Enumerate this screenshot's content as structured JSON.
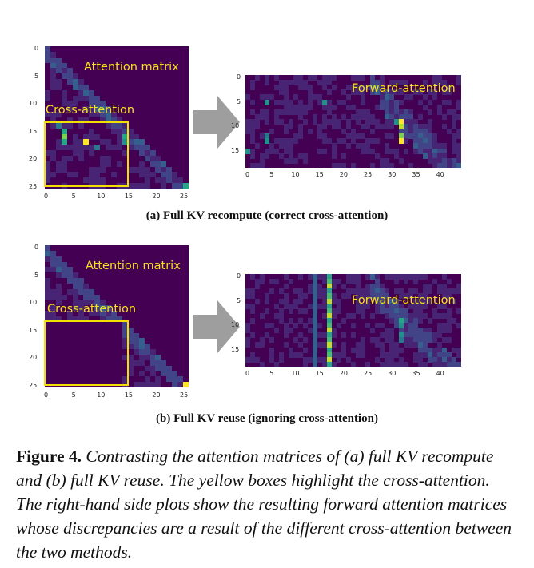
{
  "figure": {
    "panel_a": {
      "caption": "(a) Full KV recompute (correct cross-attention)",
      "left_plot": {
        "label_main": "Attention matrix",
        "label_box": "Cross-attention",
        "y_ticks": [
          "0",
          "5",
          "10",
          "15",
          "20",
          "25"
        ],
        "x_ticks": [
          "0",
          "5",
          "10",
          "15",
          "20",
          "25"
        ]
      },
      "right_plot": {
        "label_main": "Forward-attention",
        "y_ticks": [
          "0",
          "5",
          "10",
          "15"
        ],
        "x_ticks": [
          "0",
          "5",
          "10",
          "15",
          "20",
          "25",
          "30",
          "35",
          "40"
        ]
      }
    },
    "panel_b": {
      "caption": "(b) Full KV reuse (ignoring cross-attention)",
      "left_plot": {
        "label_main": "Attention matrix",
        "label_box": "Cross-attention",
        "y_ticks": [
          "0",
          "5",
          "10",
          "15",
          "20",
          "25"
        ],
        "x_ticks": [
          "0",
          "5",
          "10",
          "15",
          "20",
          "25"
        ]
      },
      "right_plot": {
        "label_main": "Forward-attention",
        "y_ticks": [
          "0",
          "5",
          "10",
          "15"
        ],
        "x_ticks": [
          "0",
          "5",
          "10",
          "15",
          "20",
          "25",
          "30",
          "35",
          "40"
        ]
      }
    },
    "caption": {
      "label": "Figure 4.",
      "text": "Contrasting the attention matrices of (a) full KV recompute and (b) full KV reuse. The yellow boxes highlight the cross-attention. The right-hand side plots show the resulting forward attention matrices whose discrepancies are a result of the different cross-attention between the two methods."
    },
    "colors": {
      "background_cell": "#440154",
      "highlight_box": "#f2e000",
      "label_text": "#f6e21c",
      "arrow": "#9e9e9e"
    }
  }
}
